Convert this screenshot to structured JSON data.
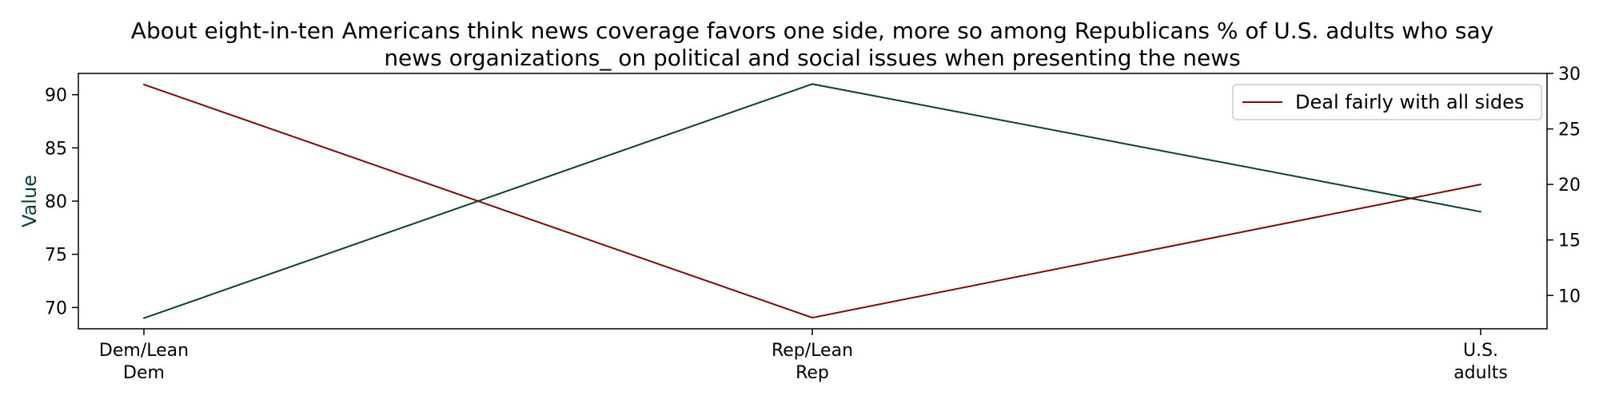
{
  "chart_data": {
    "type": "line",
    "title_lines": [
      "About eight-in-ten Americans think news coverage favors one side, more so among Republicans % of U.S. adults who say",
      "news organizations_ on political and social issues when presenting the news"
    ],
    "categories": [
      [
        "Dem/Lean",
        "Dem"
      ],
      [
        "Rep/Lean",
        "Rep"
      ],
      [
        "U.S.",
        "adults"
      ]
    ],
    "ylabel": "Value",
    "y_left": {
      "ylim": [
        68,
        92
      ],
      "ticks": [
        70,
        75,
        80,
        85,
        90
      ]
    },
    "y_right": {
      "ylim": [
        7,
        30
      ],
      "ticks": [
        10,
        15,
        20,
        25,
        30
      ]
    },
    "grid": false,
    "legend": {
      "placement": "top-right",
      "entries": [
        "Deal fairly with all sides"
      ]
    },
    "series": [
      {
        "axis": "left",
        "color": "#0b3d3d",
        "values": [
          69,
          91,
          79
        ]
      },
      {
        "name": "Deal fairly with all sides",
        "axis": "right",
        "color": "#7a0a0a",
        "values": [
          29,
          8,
          20
        ]
      }
    ]
  }
}
